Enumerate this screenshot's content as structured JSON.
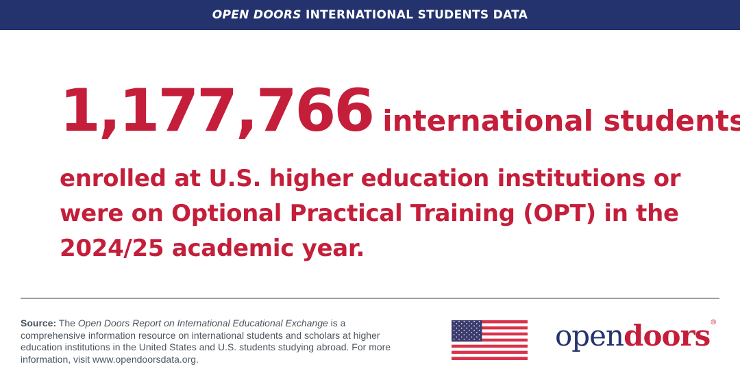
{
  "header": {
    "title_italic": "OPEN DOORS",
    "title_rest": " INTERNATIONAL STUDENTS DATA"
  },
  "headline": {
    "number": "1,177,766",
    "line1_rest": "international students",
    "line2": "enrolled at U.S. higher education institutions or",
    "line3": "were on Optional Practical Training (OPT) in the",
    "line4": "2024/25 academic year."
  },
  "footer": {
    "source_label": "Source:",
    "source_pre": " The ",
    "report_title": "Open Doors Report on International Educational Exchange",
    "source_text": " is a comprehensive information resource on international students and scholars at higher education institutions in the United States and U.S. students studying abroad. For more information, visit www.opendoorsdata.org."
  },
  "logo": {
    "part1": "open",
    "part2": "doors",
    "mark": "®"
  },
  "colors": {
    "header": "#24336e",
    "accent": "#c41e3a"
  },
  "icons": {
    "flag": "us-flag-icon"
  }
}
